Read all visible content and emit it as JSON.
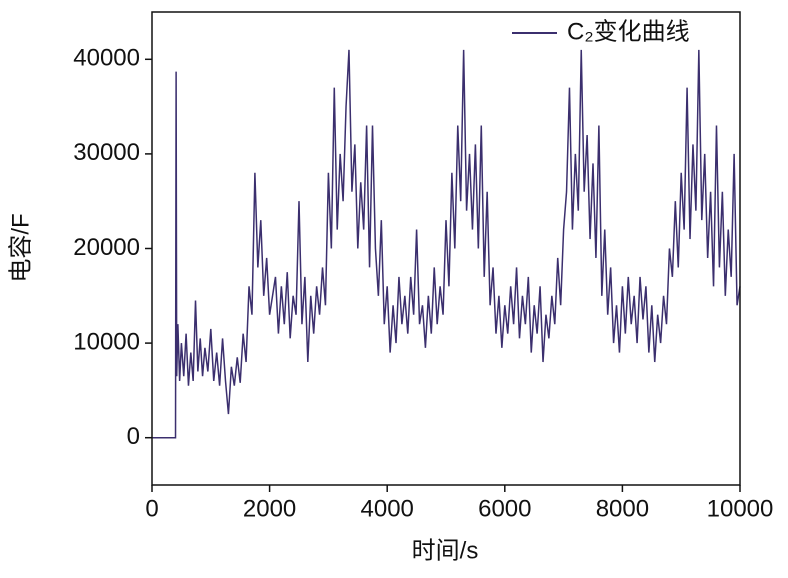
{
  "chart_data": {
    "type": "line",
    "xlabel": "时间/s",
    "ylabel": "电容/F",
    "xlim": [
      0,
      10000
    ],
    "ylim": [
      -5000,
      45000
    ],
    "xticks": [
      0,
      2000,
      4000,
      6000,
      8000,
      10000
    ],
    "yticks": [
      0,
      10000,
      20000,
      30000,
      40000
    ],
    "grid": false,
    "legend": "upper right",
    "x": [
      0,
      400,
      410,
      420,
      440,
      470,
      500,
      540,
      580,
      620,
      660,
      700,
      740,
      780,
      820,
      860,
      900,
      950,
      1000,
      1050,
      1100,
      1150,
      1200,
      1250,
      1300,
      1350,
      1400,
      1450,
      1500,
      1550,
      1600,
      1650,
      1700,
      1750,
      1800,
      1850,
      1900,
      1950,
      2000,
      2100,
      2150,
      2200,
      2250,
      2300,
      2350,
      2400,
      2450,
      2500,
      2550,
      2600,
      2650,
      2700,
      2750,
      2800,
      2850,
      2900,
      2950,
      3000,
      3050,
      3100,
      3150,
      3200,
      3250,
      3300,
      3350,
      3400,
      3450,
      3500,
      3550,
      3600,
      3650,
      3700,
      3750,
      3800,
      3850,
      3900,
      3950,
      4000,
      4050,
      4100,
      4150,
      4200,
      4250,
      4300,
      4350,
      4400,
      4450,
      4500,
      4550,
      4600,
      4650,
      4700,
      4750,
      4800,
      4850,
      4900,
      4950,
      5000,
      5050,
      5100,
      5150,
      5200,
      5250,
      5300,
      5350,
      5400,
      5450,
      5500,
      5550,
      5600,
      5650,
      5700,
      5750,
      5800,
      5850,
      5900,
      5950,
      6000,
      6050,
      6100,
      6150,
      6200,
      6250,
      6300,
      6350,
      6400,
      6450,
      6500,
      6550,
      6600,
      6650,
      6700,
      6750,
      6800,
      6850,
      6900,
      6950,
      7000,
      7050,
      7100,
      7150,
      7200,
      7250,
      7300,
      7350,
      7400,
      7450,
      7500,
      7550,
      7600,
      7650,
      7700,
      7750,
      7800,
      7850,
      7900,
      7950,
      8000,
      8050,
      8100,
      8150,
      8200,
      8250,
      8300,
      8350,
      8400,
      8450,
      8500,
      8550,
      8600,
      8650,
      8700,
      8750,
      8800,
      8850,
      8900,
      8950,
      9000,
      9050,
      9100,
      9150,
      9200,
      9250,
      9300,
      9350,
      9400,
      9450,
      9500,
      9550,
      9600,
      9650,
      9700,
      9750,
      9800,
      9850,
      9900,
      9950,
      10000
    ],
    "series": [
      {
        "name": "C₂变化曲线",
        "color": "#3b2f6e",
        "values": [
          0,
          0,
          38700,
          6500,
          12000,
          6000,
          10000,
          6500,
          11000,
          5500,
          9000,
          6000,
          14500,
          7000,
          10500,
          6500,
          9500,
          7000,
          11500,
          6000,
          9000,
          5500,
          10500,
          6000,
          2500,
          7500,
          5500,
          8500,
          5800,
          11000,
          8000,
          16000,
          13000,
          28000,
          18000,
          23000,
          15000,
          19000,
          13000,
          17000,
          11000,
          16000,
          12000,
          17500,
          10500,
          15000,
          13000,
          25000,
          12000,
          17000,
          8000,
          15000,
          11000,
          16000,
          13000,
          18000,
          14000,
          28000,
          20000,
          37000,
          22000,
          30000,
          25000,
          35000,
          41000,
          26000,
          31000,
          20000,
          27000,
          22000,
          33000,
          18000,
          33000,
          20000,
          15000,
          23000,
          12000,
          16000,
          9000,
          14000,
          10000,
          17000,
          12000,
          15000,
          11000,
          17000,
          13000,
          22000,
          12000,
          14000,
          9500,
          15000,
          11000,
          18000,
          12000,
          16000,
          13000,
          23000,
          16000,
          28000,
          20000,
          33000,
          25000,
          41000,
          24000,
          30000,
          22000,
          31000,
          20000,
          33000,
          17000,
          26000,
          14000,
          18000,
          11000,
          15000,
          9500,
          14000,
          11000,
          16000,
          12000,
          18000,
          10500,
          15000,
          12000,
          17000,
          9000,
          14000,
          11000,
          16000,
          8000,
          13000,
          10500,
          15000,
          12000,
          19000,
          14000,
          22000,
          26000,
          37000,
          22000,
          30000,
          24000,
          41000,
          26000,
          32000,
          21000,
          29000,
          19000,
          33000,
          15000,
          22000,
          13000,
          18000,
          10000,
          14000,
          9000,
          16000,
          11000,
          17000,
          12000,
          15000,
          10000,
          17000,
          12500,
          16000,
          9000,
          14000,
          8000,
          13000,
          10000,
          15000,
          12000,
          20000,
          17000,
          25000,
          18000,
          28000,
          22000,
          37000,
          21000,
          31000,
          24000,
          41000,
          23000,
          30000,
          19000,
          26000,
          16000,
          33000,
          18000,
          26000,
          15000,
          22000,
          17000,
          30000,
          14000,
          16000
        ]
      }
    ]
  }
}
